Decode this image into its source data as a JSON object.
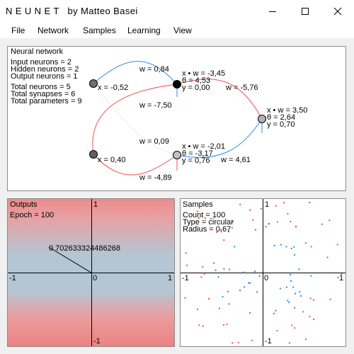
{
  "window": {
    "title": "NEUNET  by Matteo Basei",
    "title_main": "N E U N E T",
    "title_by": "by Matteo Basei",
    "icons": [
      "minimize-icon",
      "maximize-icon",
      "close-icon"
    ]
  },
  "menu": [
    "File",
    "Network",
    "Samples",
    "Learning",
    "View"
  ],
  "network_panel": {
    "title": "Neural network",
    "stats": [
      "Input neurons = 2",
      "Hidden neurons = 2",
      "Output neurons = 1",
      "Total neurons = 5",
      "Total synapses = 6",
      "Total parameters = 9"
    ],
    "inputs": [
      {
        "label": "x = -0,52"
      },
      {
        "label": "x = 0,40"
      }
    ],
    "hidden": [
      {
        "xw": "x • w = -3,45",
        "theta": "θ = 4,53",
        "y": "y = 0,00"
      },
      {
        "xw": "x • w = -2,01",
        "theta": "θ = -3,17",
        "y": "y = 0,76"
      }
    ],
    "output": {
      "xw": "x • w = 3,50",
      "theta": "θ = 2,64",
      "y": "y = 0,70"
    },
    "weights": [
      "w = 0,84",
      "w = -7,50",
      "w = 0,09",
      "w = -4,89",
      "w = -5,76",
      "w = 4,61"
    ]
  },
  "outputs_panel": {
    "title": "Outputs",
    "epoch": "Epoch = 100",
    "value": "0.702633324486268",
    "axis": {
      "top": "1",
      "bottom": "-1",
      "left": "-1",
      "right": "1",
      "center": "0"
    }
  },
  "samples_panel": {
    "title": "Samples",
    "count": "Count = 100",
    "type": "Type = circular",
    "radius": "Radius = 0,67",
    "axis": {
      "top": "1",
      "bottom": "-1",
      "left": "-1",
      "right": "1",
      "center": "0"
    }
  },
  "colors": {
    "positive": "#f05050",
    "negative": "#2b8ae6"
  }
}
